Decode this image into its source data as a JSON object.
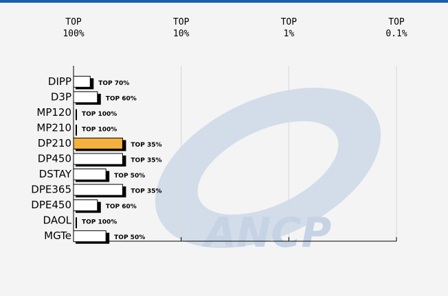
{
  "chart_data": {
    "type": "bar",
    "orientation": "horizontal",
    "log_scale": true,
    "grid": true,
    "watermark": "ANCP",
    "categories": [
      "DIPP",
      "D3P",
      "MP120",
      "MP210",
      "DP210",
      "DP450",
      "DSTAY",
      "DPE365",
      "DPE450",
      "DAOL",
      "MGTe"
    ],
    "values": [
      70,
      60,
      100,
      100,
      35,
      35,
      50,
      35,
      60,
      100,
      50
    ],
    "value_labels": [
      "TOP 70%",
      "TOP 60%",
      "TOP 100%",
      "TOP 100%",
      "TOP 35%",
      "TOP 35%",
      "TOP 50%",
      "TOP 35%",
      "TOP 60%",
      "TOP 100%",
      "TOP 50%"
    ],
    "colors": [
      "#ffffff",
      "#ffffff",
      "#ffffff",
      "#ffffff",
      "#f3b13f",
      "#ffffff",
      "#ffffff",
      "#ffffff",
      "#ffffff",
      "#ffffff",
      "#ffffff"
    ],
    "xlim": [
      100,
      0.1
    ],
    "xticks": [
      {
        "value": 100,
        "label": "TOP 100%"
      },
      {
        "value": 10,
        "label": "TOP 10%"
      },
      {
        "value": 1,
        "label": "TOP 1%"
      },
      {
        "value": 0.1,
        "label": "TOP 0.1%"
      }
    ]
  }
}
